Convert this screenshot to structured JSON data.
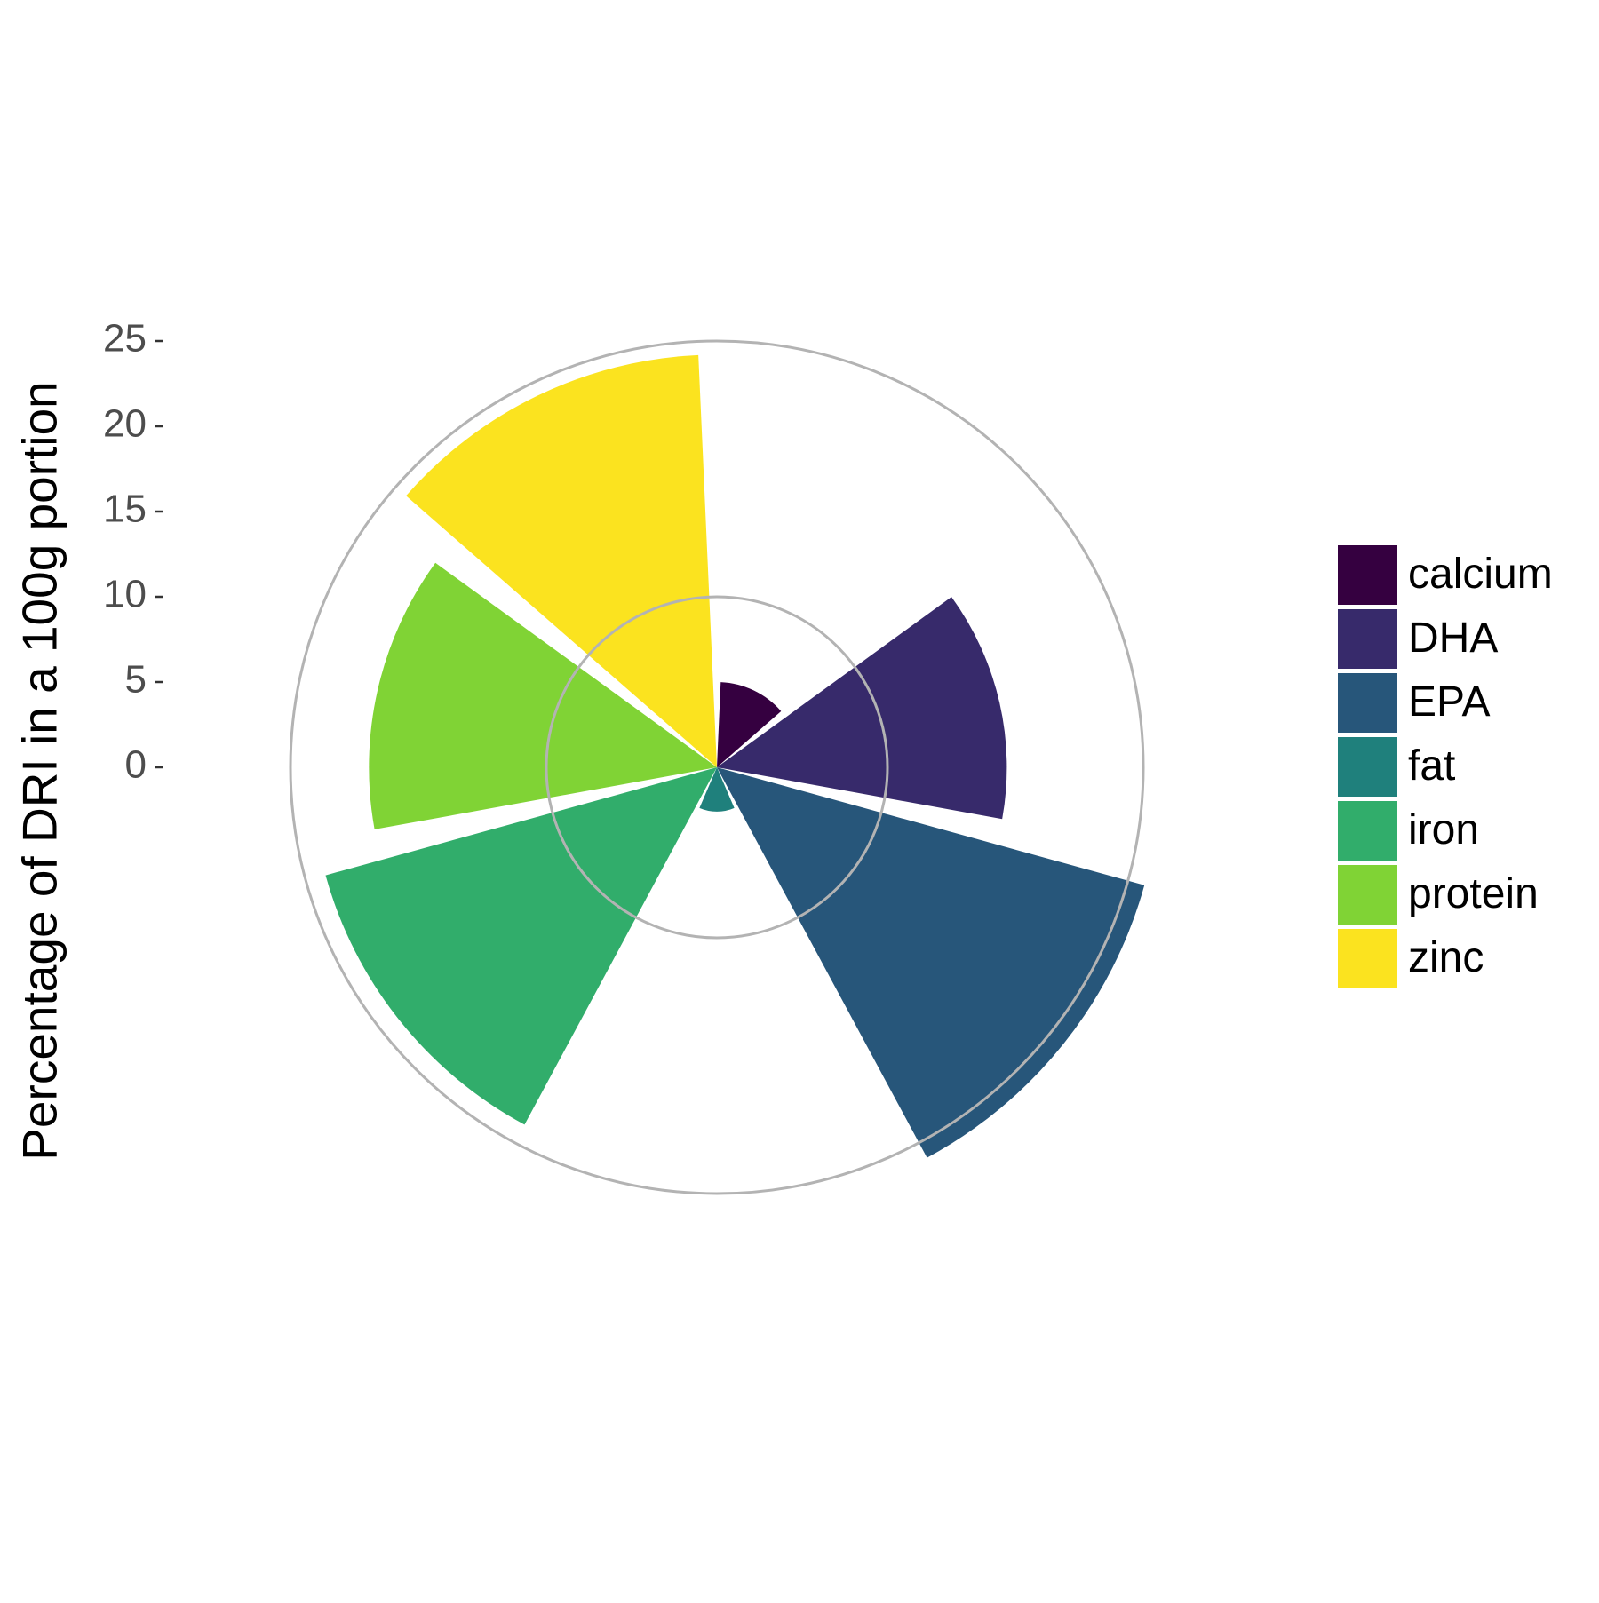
{
  "chart_data": {
    "type": "polar-bar",
    "y_label": "Percentage of DRI in a 100g portion",
    "categories": [
      "calcium",
      "DHA",
      "EPA",
      "fat",
      "iron",
      "protein",
      "zinc"
    ],
    "values": [
      5,
      17,
      26,
      2.6,
      23.8,
      20.4,
      24.2
    ],
    "colors": [
      "#350040",
      "#372a6b",
      "#27567a",
      "#1f807c",
      "#31ad6b",
      "#80d335",
      "#fbe31f"
    ],
    "ylim": [
      0,
      25
    ],
    "yticks": [
      0,
      5,
      10,
      15,
      20,
      25
    ],
    "radial_grid": [
      10,
      25
    ],
    "legend": "right"
  }
}
